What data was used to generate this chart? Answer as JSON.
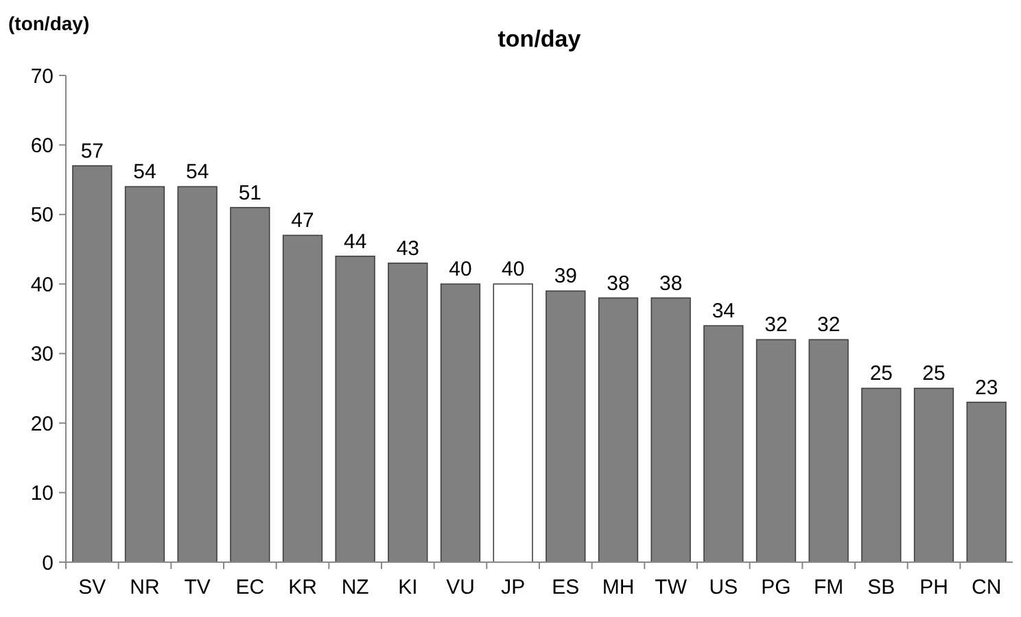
{
  "chart_data": {
    "type": "bar",
    "title": "ton/day",
    "ylabel": "(ton/day)",
    "categories": [
      "SV",
      "NR",
      "TV",
      "EC",
      "KR",
      "NZ",
      "KI",
      "VU",
      "JP",
      "ES",
      "MH",
      "TW",
      "US",
      "PG",
      "FM",
      "SB",
      "PH",
      "CN"
    ],
    "values": [
      57,
      54,
      54,
      51,
      47,
      44,
      43,
      40,
      40,
      39,
      38,
      38,
      34,
      32,
      32,
      25,
      25,
      23
    ],
    "colors": [
      "#808080",
      "#808080",
      "#808080",
      "#808080",
      "#808080",
      "#808080",
      "#808080",
      "#808080",
      "#ffffff",
      "#808080",
      "#808080",
      "#808080",
      "#808080",
      "#808080",
      "#808080",
      "#808080",
      "#808080",
      "#808080"
    ],
    "ylim": [
      0,
      70
    ],
    "yticks": [
      0,
      10,
      20,
      30,
      40,
      50,
      60,
      70
    ],
    "data_labels": true
  }
}
